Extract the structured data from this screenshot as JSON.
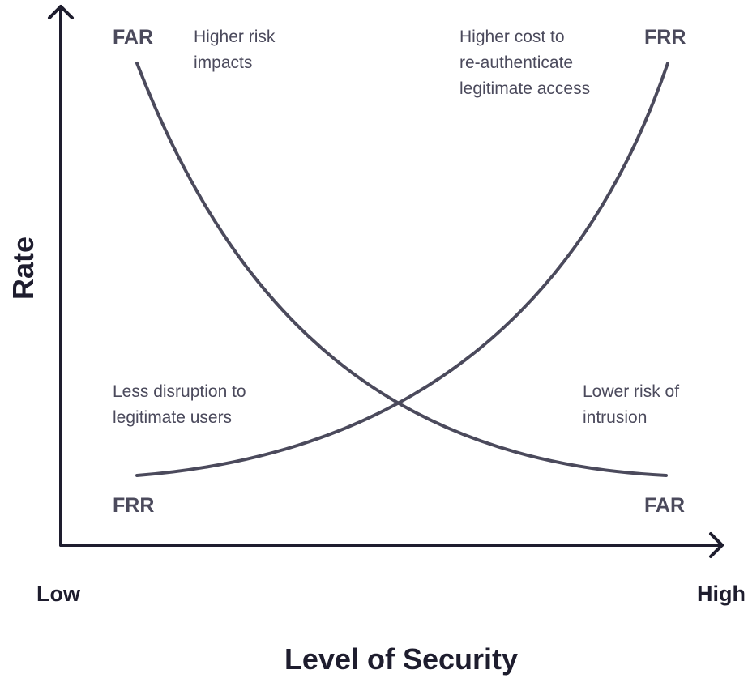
{
  "diagram": {
    "y_axis_title": "Rate",
    "x_axis_title": "Level of Security",
    "x_low_label": "Low",
    "x_high_label": "High",
    "colors": {
      "curve": "#4b4a5c",
      "axis": "#1e1d2e",
      "text": "#4b4a5c"
    },
    "curves": {
      "far": {
        "label_start": "FAR",
        "label_end": "FAR"
      },
      "frr": {
        "label_start": "FRR",
        "label_end": "FRR"
      }
    },
    "notes": {
      "top_left": [
        "Higher risk",
        "impacts"
      ],
      "top_right": [
        "Higher cost to",
        "re-authenticate",
        "legitimate access"
      ],
      "bottom_left": [
        "Less disruption to",
        "legitimate users"
      ],
      "bottom_right": [
        "Lower risk of",
        "intrusion"
      ]
    }
  }
}
